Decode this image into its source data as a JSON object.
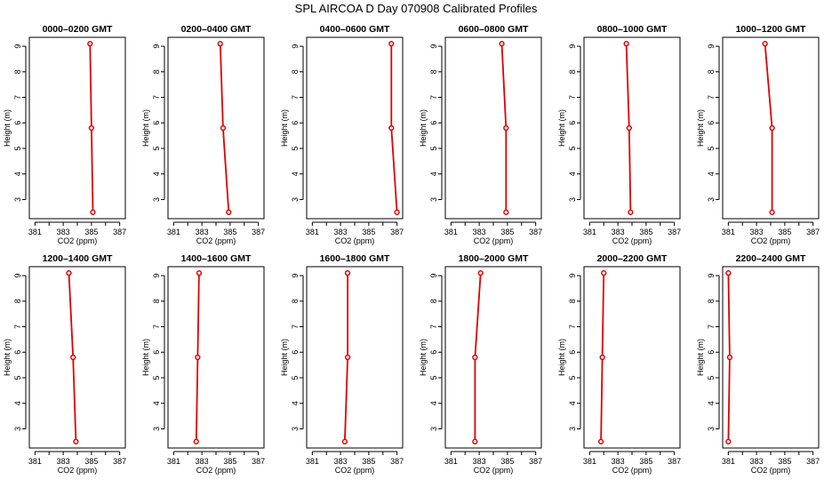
{
  "title": "SPL AIRCOA D  Day 070908  Calibrated Profiles",
  "colors": {
    "series": "#e00000"
  },
  "chart_data": {
    "type": "line",
    "xlabel": "CO2 (ppm)",
    "ylabel": "Height (m)",
    "xlim": [
      380.6,
      387.4
    ],
    "ylim": [
      2.25,
      9.35
    ],
    "x_ticks": [
      "381",
      "383",
      "385",
      "387"
    ],
    "y_ticks": [
      "3",
      "4",
      "5",
      "6",
      "7",
      "8",
      "9"
    ],
    "grid": false,
    "panels": [
      {
        "title": "0000–0200 GMT",
        "x": [
          384.9,
          385.0,
          385.1
        ],
        "y": [
          9.1,
          5.8,
          2.5
        ]
      },
      {
        "title": "0200–0400 GMT",
        "x": [
          384.3,
          384.5,
          384.9
        ],
        "y": [
          9.1,
          5.8,
          2.5
        ]
      },
      {
        "title": "0400–0600 GMT",
        "x": [
          386.6,
          386.6,
          387.0
        ],
        "y": [
          9.1,
          5.8,
          2.5
        ]
      },
      {
        "title": "0600–0800 GMT",
        "x": [
          384.6,
          384.9,
          384.9
        ],
        "y": [
          9.1,
          5.8,
          2.5
        ]
      },
      {
        "title": "0800–1000 GMT",
        "x": [
          383.6,
          383.8,
          383.9
        ],
        "y": [
          9.1,
          5.8,
          2.5
        ]
      },
      {
        "title": "1000–1200 GMT",
        "x": [
          383.6,
          384.1,
          384.1
        ],
        "y": [
          9.1,
          5.8,
          2.5
        ]
      },
      {
        "title": "1200–1400 GMT",
        "x": [
          383.4,
          383.7,
          383.9
        ],
        "y": [
          9.1,
          5.8,
          2.5
        ]
      },
      {
        "title": "1400–1600 GMT",
        "x": [
          382.8,
          382.7,
          382.6
        ],
        "y": [
          9.1,
          5.8,
          2.5
        ]
      },
      {
        "title": "1600–1800 GMT",
        "x": [
          383.5,
          383.5,
          383.3
        ],
        "y": [
          9.1,
          5.8,
          2.5
        ]
      },
      {
        "title": "1800–2000 GMT",
        "x": [
          383.1,
          382.7,
          382.7
        ],
        "y": [
          9.1,
          5.8,
          2.5
        ]
      },
      {
        "title": "2000–2200 GMT",
        "x": [
          382.0,
          381.9,
          381.8
        ],
        "y": [
          9.1,
          5.8,
          2.5
        ]
      },
      {
        "title": "2200–2400 GMT",
        "x": [
          381.0,
          381.1,
          381.0
        ],
        "y": [
          9.1,
          5.8,
          2.5
        ]
      }
    ]
  }
}
